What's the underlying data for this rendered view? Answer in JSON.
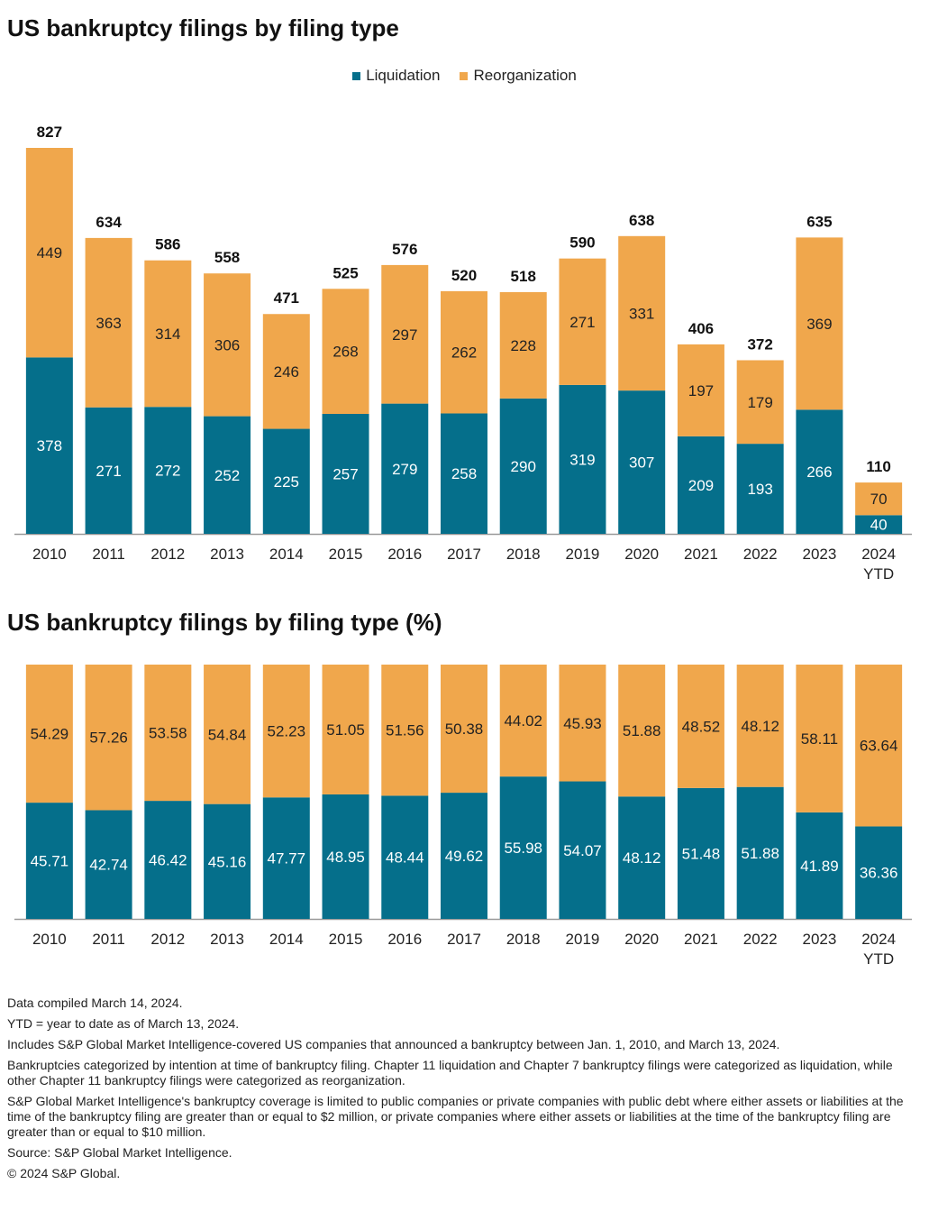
{
  "colors": {
    "liquidation": "#056f8b",
    "reorganization": "#f0a74c",
    "axis": "#999999",
    "text": "#222222"
  },
  "legend": {
    "liquidation": "Liquidation",
    "reorganization": "Reorganization"
  },
  "chart_data": [
    {
      "type": "bar",
      "stacked": true,
      "title": "US bankruptcy filings by filing type",
      "categories": [
        "2010",
        "2011",
        "2012",
        "2013",
        "2014",
        "2015",
        "2016",
        "2017",
        "2018",
        "2019",
        "2020",
        "2021",
        "2022",
        "2023",
        "2024 YTD"
      ],
      "series": [
        {
          "name": "Liquidation",
          "values": [
            378,
            271,
            272,
            252,
            225,
            257,
            279,
            258,
            290,
            319,
            307,
            209,
            193,
            266,
            40
          ]
        },
        {
          "name": "Reorganization",
          "values": [
            449,
            363,
            314,
            306,
            246,
            268,
            297,
            262,
            228,
            271,
            331,
            197,
            179,
            369,
            70
          ]
        }
      ],
      "totals": [
        827,
        634,
        586,
        558,
        471,
        525,
        576,
        520,
        518,
        590,
        638,
        406,
        372,
        635,
        110
      ],
      "ylim": [
        0,
        827
      ],
      "legend": "top-center",
      "grid": false
    },
    {
      "type": "bar",
      "stacked": true,
      "title": "US bankruptcy filings by filing type (%)",
      "categories": [
        "2010",
        "2011",
        "2012",
        "2013",
        "2014",
        "2015",
        "2016",
        "2017",
        "2018",
        "2019",
        "2020",
        "2021",
        "2022",
        "2023",
        "2024 YTD"
      ],
      "series": [
        {
          "name": "Liquidation",
          "values": [
            "45.71",
            "42.74",
            "46.42",
            "45.16",
            "47.77",
            "48.95",
            "48.44",
            "49.62",
            "55.98",
            "54.07",
            "48.12",
            "51.48",
            "51.88",
            "41.89",
            "36.36"
          ]
        },
        {
          "name": "Reorganization",
          "values": [
            "54.29",
            "57.26",
            "53.58",
            "54.84",
            "52.23",
            "51.05",
            "51.56",
            "50.38",
            "44.02",
            "45.93",
            "51.88",
            "48.52",
            "48.12",
            "58.11",
            "63.64"
          ]
        }
      ],
      "ylim": [
        0,
        100
      ],
      "grid": false
    }
  ],
  "notes": {
    "compiled": "Data compiled March 14, 2024.",
    "ytd": "YTD = year to date as of March 13, 2024.",
    "includes": "Includes S&P Global Market Intelligence-covered US companies that announced a bankruptcy between Jan. 1, 2010, and March 13, 2024.",
    "categorized": "Bankruptcies categorized by intention at time of bankruptcy filing. Chapter 11 liquidation and Chapter 7 bankruptcy filings were categorized as liquidation, while other Chapter 11 bankruptcy filings were categorized as reorganization.",
    "coverage": "S&P Global Market Intelligence's bankruptcy coverage is limited to public companies or private companies with public debt where either assets or liabilities at the time of the bankruptcy filing are greater than or equal to $2 million, or private companies where either assets or liabilities at the time of the bankruptcy filing are greater than or equal to $10 million.",
    "source": "Source: S&P Global Market Intelligence.",
    "copyright": "© 2024 S&P Global."
  }
}
